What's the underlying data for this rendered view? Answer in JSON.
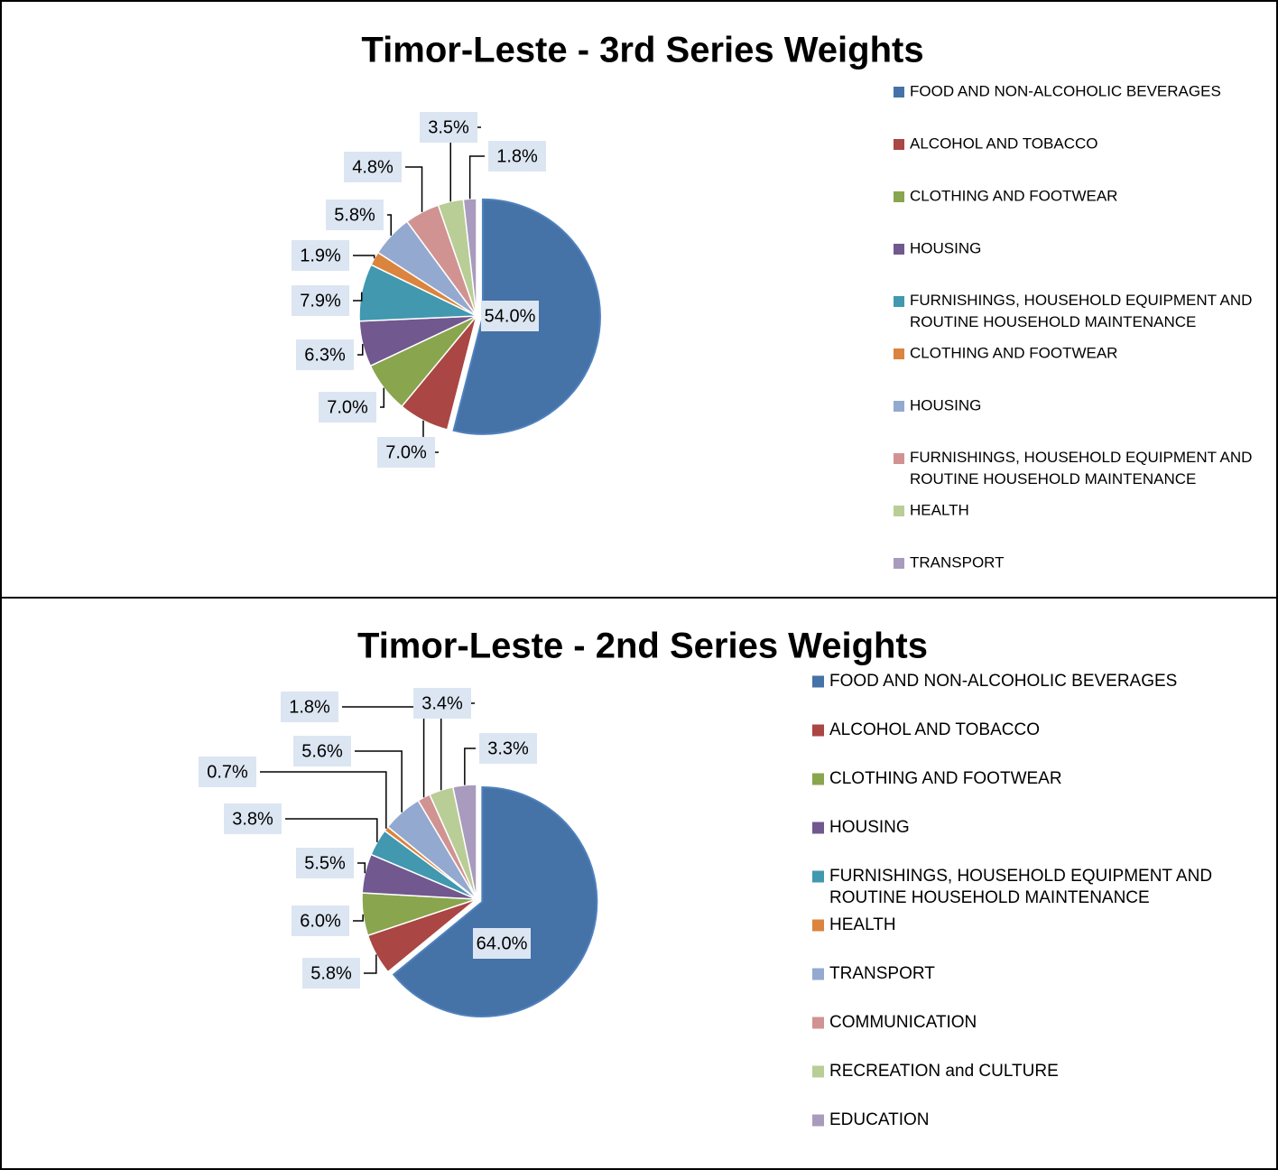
{
  "chart_data": [
    {
      "type": "pie",
      "title": "Timor-Leste - 3rd Series Weights",
      "categories": [
        "FOOD AND NON-ALCOHOLIC BEVERAGES",
        "ALCOHOL AND TOBACCO",
        "CLOTHING AND FOOTWEAR",
        "HOUSING",
        "FURNISHINGS, HOUSEHOLD EQUIPMENT AND ROUTINE HOUSEHOLD MAINTENANCE",
        "CLOTHING AND FOOTWEAR",
        "HOUSING",
        "FURNISHINGS, HOUSEHOLD EQUIPMENT AND ROUTINE HOUSEHOLD MAINTENANCE",
        "HEALTH",
        "TRANSPORT"
      ],
      "values": [
        54.0,
        7.0,
        7.0,
        6.3,
        7.9,
        1.9,
        5.8,
        4.8,
        3.5,
        1.8
      ],
      "value_labels": [
        "54.0%",
        "7.0%",
        "7.0%",
        "6.3%",
        "7.9%",
        "1.9%",
        "5.8%",
        "4.8%",
        "3.5%",
        "1.8%"
      ],
      "colors": [
        "#4572a7",
        "#aa4643",
        "#89a54e",
        "#71588f",
        "#4198af",
        "#db843d",
        "#93a9cf",
        "#d19392",
        "#b9cd96",
        "#a99bbd"
      ]
    },
    {
      "type": "pie",
      "title": "Timor-Leste - 2nd Series Weights",
      "categories": [
        "FOOD AND NON-ALCOHOLIC BEVERAGES",
        "ALCOHOL AND TOBACCO",
        "CLOTHING AND FOOTWEAR",
        "HOUSING",
        "FURNISHINGS, HOUSEHOLD EQUIPMENT AND ROUTINE HOUSEHOLD MAINTENANCE",
        "HEALTH",
        "TRANSPORT",
        "COMMUNICATION",
        "RECREATION and CULTURE",
        "EDUCATION"
      ],
      "values": [
        64.0,
        5.8,
        6.0,
        5.5,
        3.8,
        0.7,
        5.6,
        1.8,
        3.4,
        3.3
      ],
      "value_labels": [
        "64.0%",
        "5.8%",
        "6.0%",
        "5.5%",
        "3.8%",
        "0.7%",
        "5.6%",
        "1.8%",
        "3.4%",
        "3.3%"
      ],
      "colors": [
        "#4572a7",
        "#aa4643",
        "#89a54e",
        "#71588f",
        "#4198af",
        "#db843d",
        "#93a9cf",
        "#d19392",
        "#b9cd96",
        "#a99bbd"
      ]
    }
  ]
}
